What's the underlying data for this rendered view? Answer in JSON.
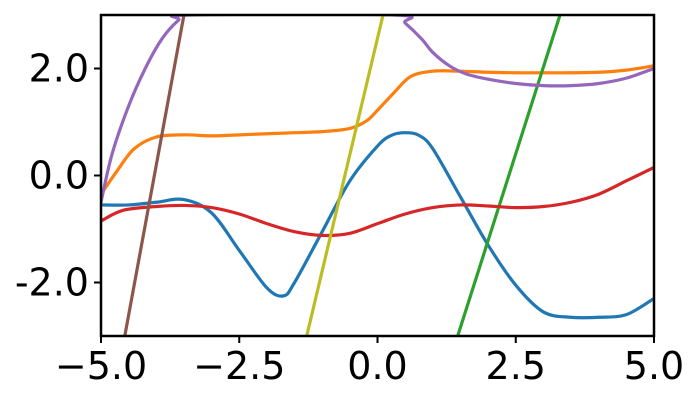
{
  "chart_data": {
    "type": "line",
    "title": "",
    "xlabel": "",
    "ylabel": "",
    "xlim": [
      -5.0,
      5.0
    ],
    "ylim": [
      -3.0,
      3.0
    ],
    "grid": false,
    "legend": "none",
    "x_ticks": [
      {
        "value": -5.0,
        "label": "−5.0"
      },
      {
        "value": -2.5,
        "label": "−2.5"
      },
      {
        "value": 0.0,
        "label": "0.0"
      },
      {
        "value": 2.5,
        "label": "2.5"
      },
      {
        "value": 5.0,
        "label": "5.0"
      }
    ],
    "y_ticks": [
      {
        "value": -2.0,
        "label": "-2.0"
      },
      {
        "value": 0.0,
        "label": "0.0"
      },
      {
        "value": 2.0,
        "label": "2.0"
      }
    ],
    "series": [
      {
        "color": "#1f77b4",
        "x": [
          -5.0,
          -4.5,
          -4.0,
          -3.5,
          -3.0,
          -2.5,
          -2.0,
          -1.7,
          -1.5,
          -1.0,
          -0.5,
          0.0,
          0.25,
          0.5,
          0.75,
          1.0,
          1.5,
          2.0,
          2.5,
          3.0,
          3.5,
          4.0,
          4.5,
          5.0
        ],
        "y": [
          -0.55,
          -0.55,
          -0.5,
          -0.45,
          -0.7,
          -1.4,
          -2.1,
          -2.25,
          -2.0,
          -1.05,
          -0.1,
          0.55,
          0.75,
          0.8,
          0.75,
          0.5,
          -0.4,
          -1.3,
          -2.05,
          -2.55,
          -2.65,
          -2.65,
          -2.6,
          -2.3
        ]
      },
      {
        "color": "#ff7f0e",
        "x": [
          -5.0,
          -4.7,
          -4.4,
          -4.0,
          -3.5,
          -3.0,
          -2.5,
          -2.0,
          -1.5,
          -1.0,
          -0.5,
          -0.2,
          0.0,
          0.3,
          0.6,
          1.0,
          1.5,
          2.0,
          2.5,
          3.0,
          3.5,
          4.0,
          4.5,
          5.0
        ],
        "y": [
          -0.35,
          0.1,
          0.5,
          0.72,
          0.76,
          0.74,
          0.76,
          0.78,
          0.8,
          0.82,
          0.88,
          1.02,
          1.22,
          1.55,
          1.85,
          1.95,
          1.95,
          1.93,
          1.92,
          1.92,
          1.92,
          1.93,
          1.97,
          2.05
        ]
      },
      {
        "color": "#2ca02c",
        "x": [
          1.45,
          3.3
        ],
        "y": [
          -3.0,
          3.0
        ]
      },
      {
        "color": "#d62728",
        "x": [
          -5.0,
          -4.6,
          -4.0,
          -3.5,
          -3.0,
          -2.5,
          -2.0,
          -1.5,
          -1.0,
          -0.5,
          0.0,
          0.5,
          1.0,
          1.5,
          2.0,
          2.5,
          3.0,
          3.5,
          4.0,
          4.5,
          4.8,
          5.0
        ],
        "y": [
          -0.85,
          -0.65,
          -0.58,
          -0.56,
          -0.6,
          -0.72,
          -0.9,
          -1.05,
          -1.12,
          -1.08,
          -0.9,
          -0.72,
          -0.6,
          -0.55,
          -0.57,
          -0.6,
          -0.58,
          -0.5,
          -0.35,
          -0.1,
          0.05,
          0.15
        ]
      },
      {
        "color": "#9467bd",
        "x": [
          -5.0,
          -4.8,
          -4.5,
          -4.2,
          -3.9,
          -3.6,
          -3.4,
          0.3,
          0.5,
          0.8,
          1.0,
          1.3,
          1.6,
          2.0,
          2.5,
          3.0,
          3.5,
          4.0,
          4.5,
          5.0
        ],
        "y": [
          -0.5,
          0.4,
          1.3,
          2.0,
          2.55,
          2.9,
          3.0,
          3.0,
          2.85,
          2.55,
          2.3,
          2.05,
          1.9,
          1.8,
          1.72,
          1.68,
          1.68,
          1.72,
          1.82,
          2.0
        ]
      },
      {
        "color": "#8c564b",
        "x": [
          -4.57,
          -3.5
        ],
        "y": [
          -3.0,
          3.0
        ]
      },
      {
        "color": "#bcbd22",
        "x": [
          -1.28,
          0.1
        ],
        "y": [
          -3.0,
          3.0
        ]
      }
    ]
  }
}
